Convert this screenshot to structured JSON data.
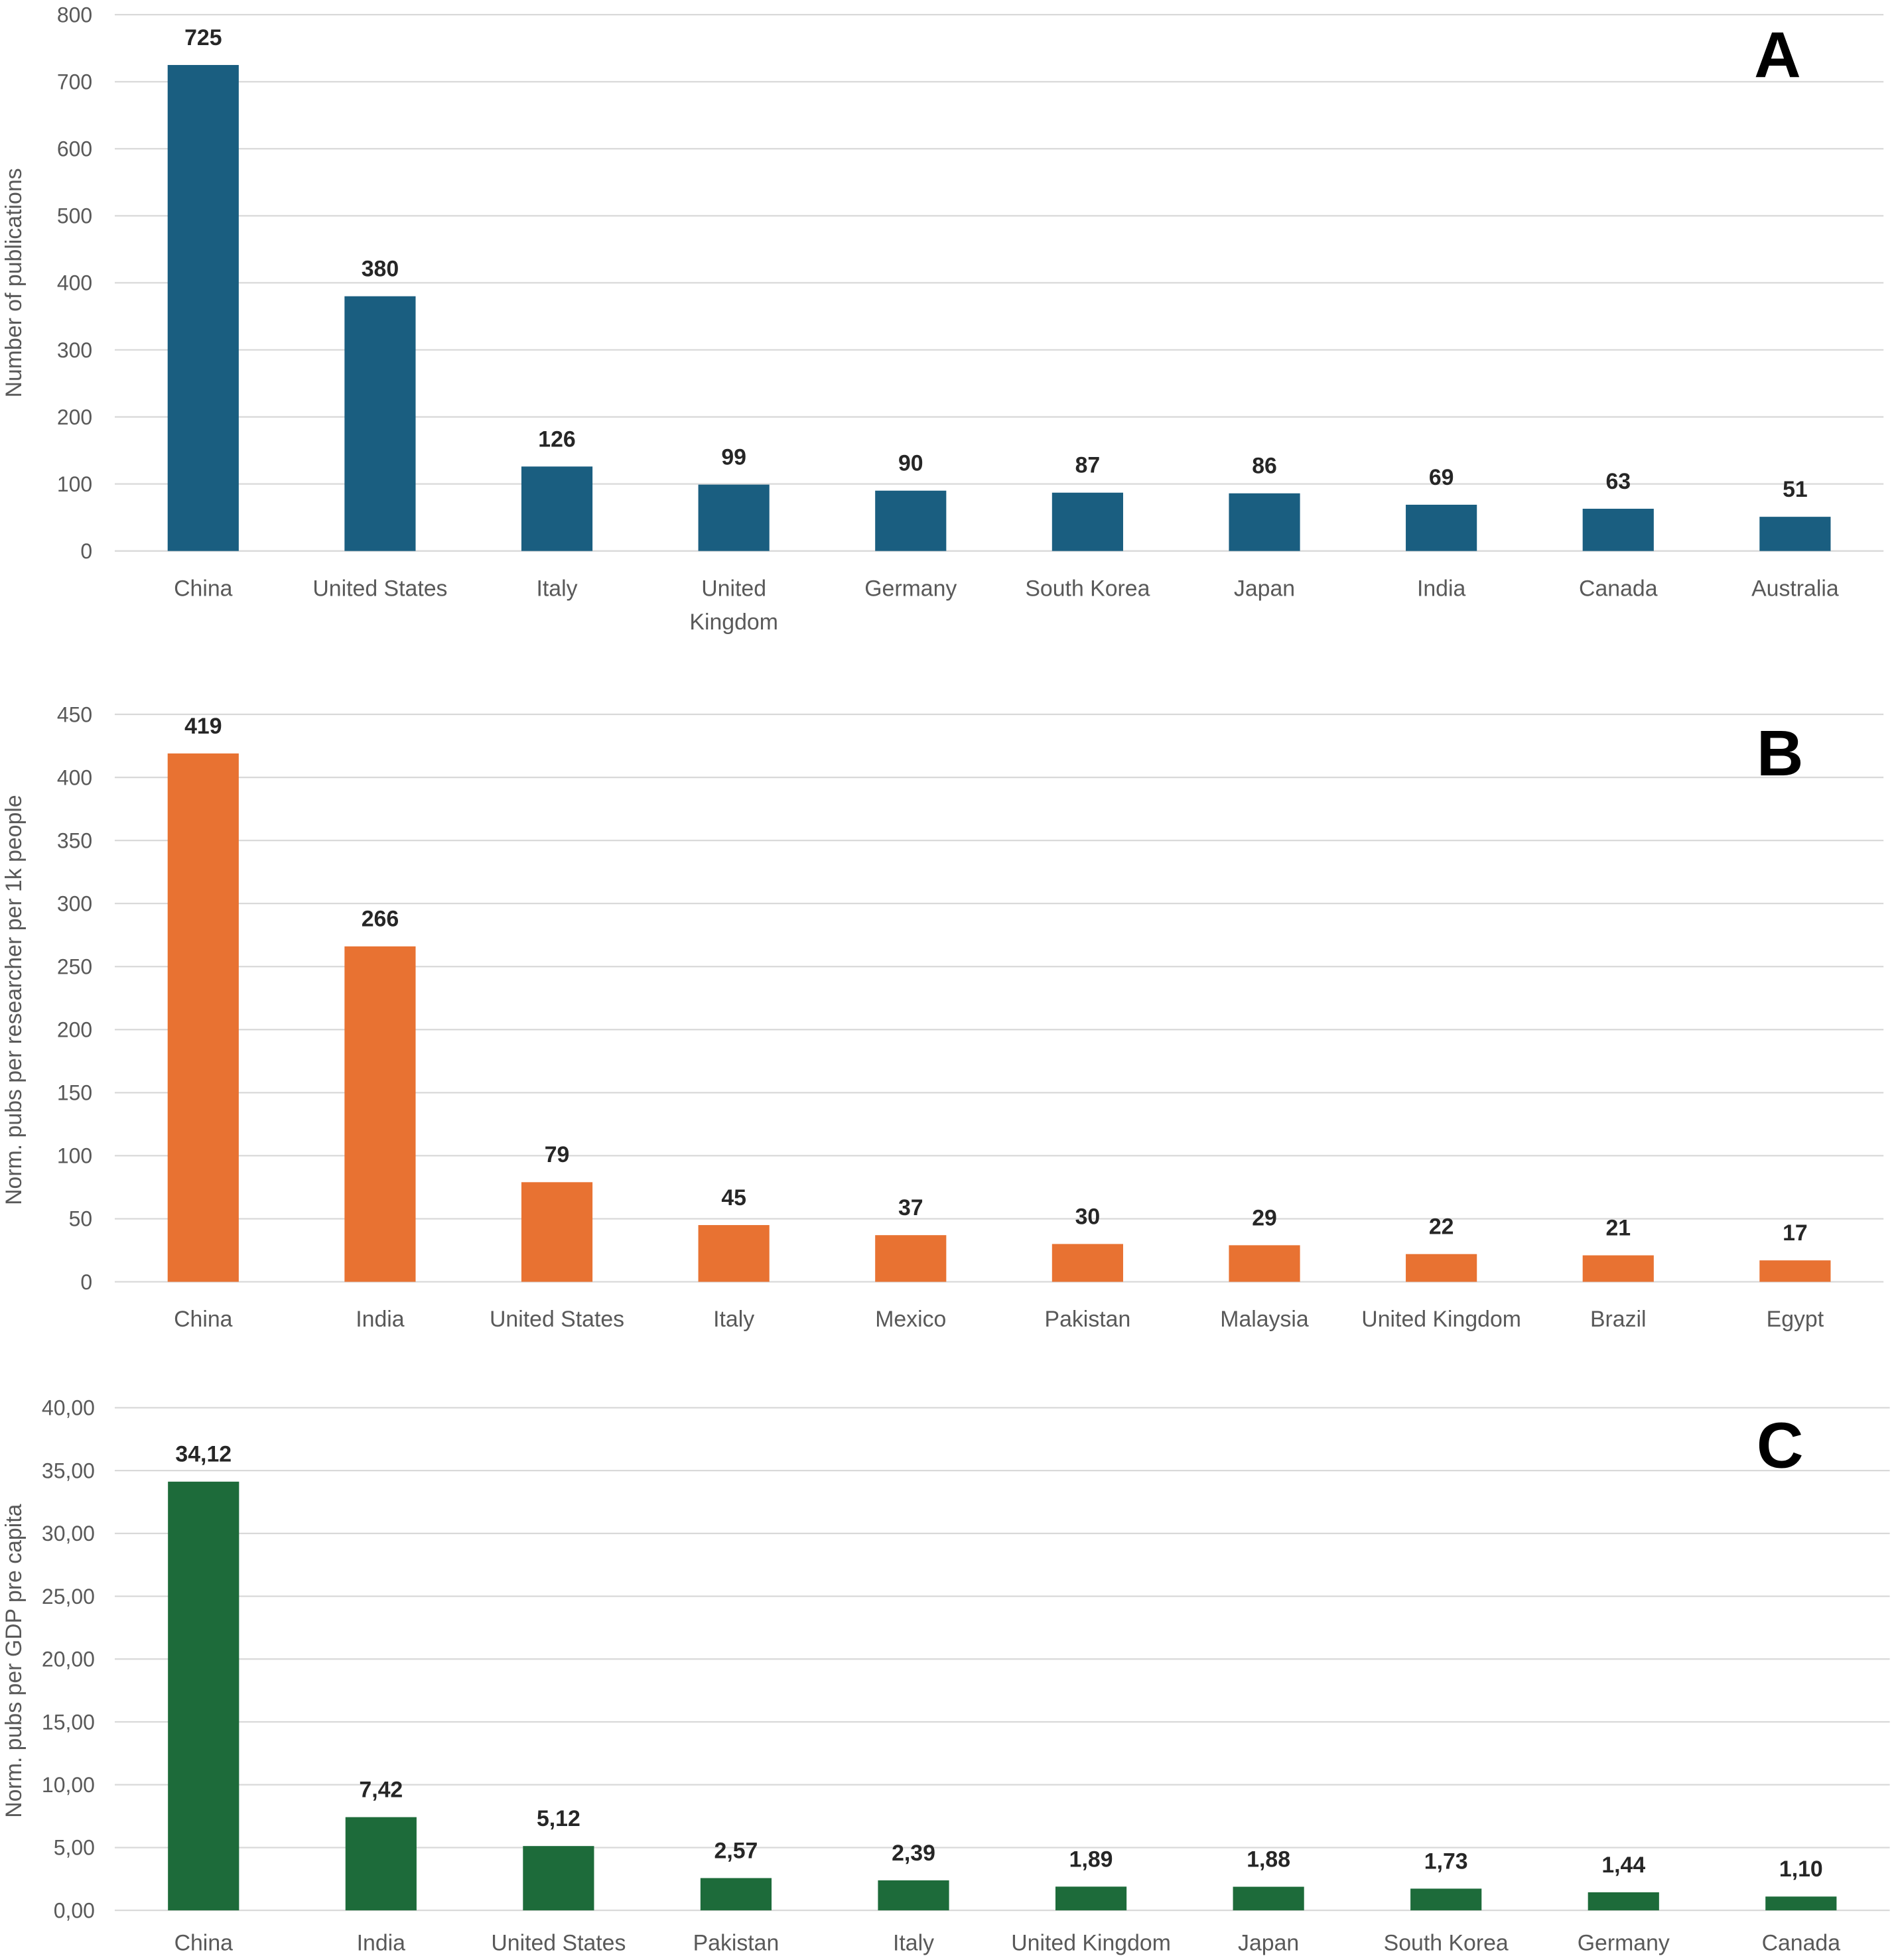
{
  "chart_data": [
    {
      "type": "bar",
      "panel_label": "A",
      "ylabel": "Number of publications",
      "xlabel": "",
      "ylim": [
        0,
        800
      ],
      "yticks": [
        "0",
        "100",
        "200",
        "300",
        "400",
        "500",
        "600",
        "700",
        "800"
      ],
      "grid": true,
      "color": "#1a5e80",
      "categories": [
        "China",
        "United States",
        "Italy",
        "United Kingdom",
        "Germany",
        "South Korea",
        "Japan",
        "India",
        "Canada",
        "Australia"
      ],
      "wrapped_categories": [
        "United Kingdom"
      ],
      "values": [
        725,
        380,
        126,
        99,
        90,
        87,
        86,
        69,
        63,
        51
      ],
      "labels": [
        "725",
        "380",
        "126",
        "99",
        "90",
        "87",
        "86",
        "69",
        "63",
        "51"
      ]
    },
    {
      "type": "bar",
      "panel_label": "B",
      "ylabel": "Norm. pubs per researcher per 1k people",
      "xlabel": "",
      "ylim": [
        0,
        450
      ],
      "yticks": [
        "0",
        "50",
        "100",
        "150",
        "200",
        "250",
        "300",
        "350",
        "400",
        "450"
      ],
      "grid": true,
      "color": "#e87232",
      "categories": [
        "China",
        "India",
        "United States",
        "Italy",
        "Mexico",
        "Pakistan",
        "Malaysia",
        "United Kingdom",
        "Brazil",
        "Egypt"
      ],
      "wrapped_categories": [],
      "values": [
        419,
        266,
        79,
        45,
        37,
        30,
        29,
        22,
        21,
        17
      ],
      "labels": [
        "419",
        "266",
        "79",
        "45",
        "37",
        "30",
        "29",
        "22",
        "21",
        "17"
      ]
    },
    {
      "type": "bar",
      "panel_label": "C",
      "ylabel": "Norm. pubs per GDP pre capita",
      "xlabel": "",
      "ylim": [
        0,
        40
      ],
      "yticks": [
        "0,00",
        "5,00",
        "10,00",
        "15,00",
        "20,00",
        "25,00",
        "30,00",
        "35,00",
        "40,00"
      ],
      "grid": true,
      "color": "#1d6b3a",
      "categories": [
        "China",
        "India",
        "United States",
        "Pakistan",
        "Italy",
        "United Kingdom",
        "Japan",
        "South Korea",
        "Germany",
        "Canada"
      ],
      "wrapped_categories": [],
      "values": [
        34.12,
        7.42,
        5.12,
        2.57,
        2.39,
        1.89,
        1.88,
        1.73,
        1.44,
        1.1
      ],
      "labels": [
        "34,12",
        "7,42",
        "5,12",
        "2,57",
        "2,39",
        "1,89",
        "1,88",
        "1,73",
        "1,44",
        "1,10"
      ]
    }
  ]
}
